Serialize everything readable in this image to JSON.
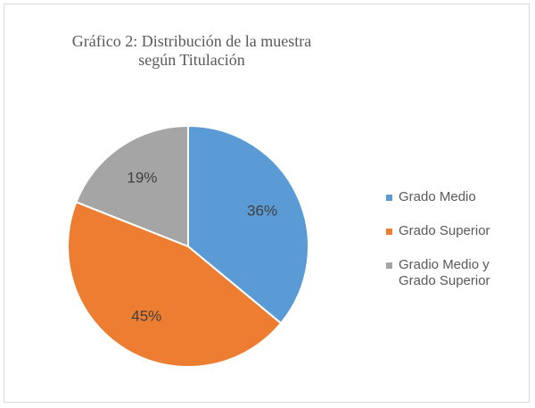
{
  "chart_data": {
    "type": "pie",
    "title": "Gráfico 2: Distribución de la muestra según Titulación",
    "categories": [
      "Grado Medio",
      "Grado Superior",
      "Gradio Medio y Grado Superior"
    ],
    "values": [
      36,
      45,
      19
    ],
    "value_labels": [
      "36%",
      "45%",
      "19%"
    ],
    "colors": [
      "#5b9bd5",
      "#ed7d31",
      "#a5a5a5"
    ],
    "legend": "right"
  }
}
